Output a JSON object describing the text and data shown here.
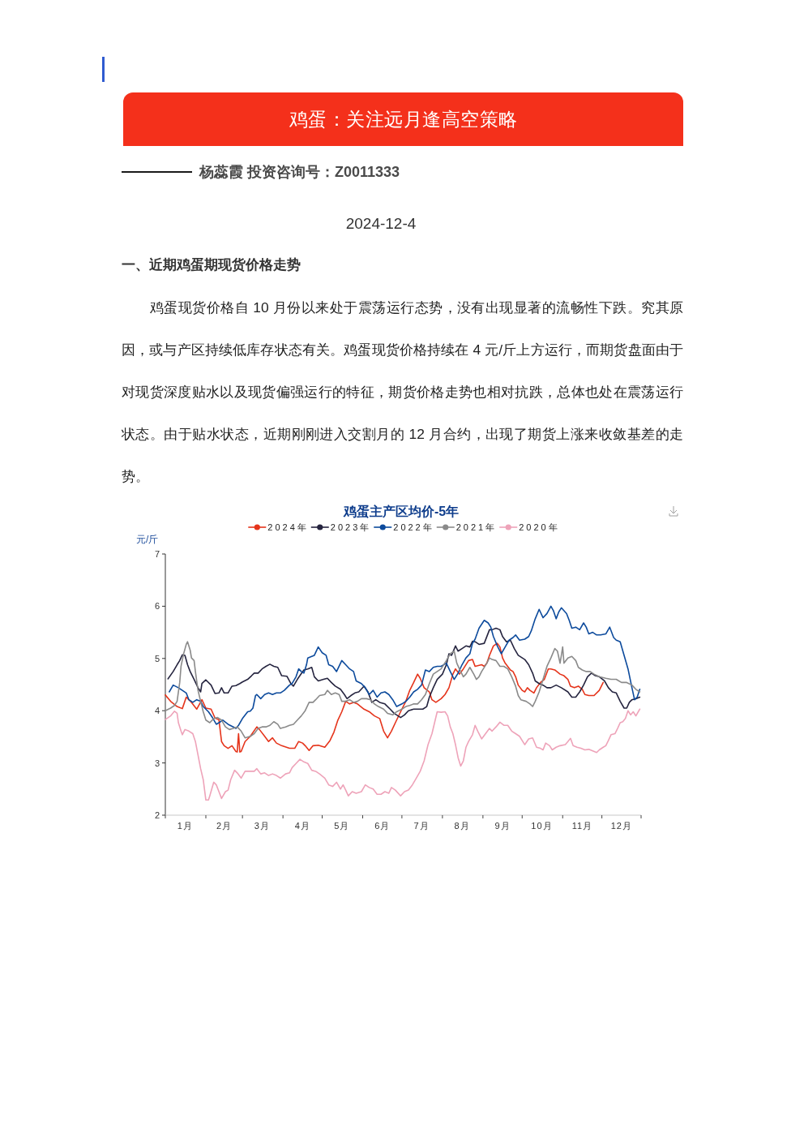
{
  "chart_data": {
    "type": "line",
    "title": "鸡蛋主产区均价-5年",
    "ylabel": "元/斤",
    "annotations": [
      "鸡蛋：关注远月逢高空策略",
      "杨蕊霞 投资咨询号：Z0011333",
      "2024-12-4",
      "一、近期鸡蛋期现货价格走势",
      "鸡蛋现货价格自 10 月份以来处于震荡运行态势，没有出现显著的流畅性下跌。究其原因，或与产区持续低库存状态有关。鸡蛋现货价格持续在 4 元/斤上方运行，而期货盘面由于对现货深度贴水以及现货偏强运行的特征，期货价格走势也相对抗跌，总体也处在震荡运行状态。由于贴水状态，近期刚刚进入交割月的 12 月合约，出现了期货上涨来收敛基差的走势。"
    ],
    "legend": "top",
    "xlim": [
      "--01-01",
      "--12-31"
    ],
    "xticks": [
      {
        "value": "--01-01",
        "label": null
      },
      {
        "value": "--01-16",
        "label": "1月"
      },
      {
        "value": "--02-01",
        "label": null
      },
      {
        "value": "--02-15",
        "label": "2月"
      },
      {
        "value": "--03-01",
        "label": null
      },
      {
        "value": "--03-16",
        "label": "3月"
      },
      {
        "value": "--04-01",
        "label": null
      },
      {
        "value": "--04-16",
        "label": "4月"
      },
      {
        "value": "--05-01",
        "label": null
      },
      {
        "value": "--05-16",
        "label": "5月"
      },
      {
        "value": "--06-01",
        "label": null
      },
      {
        "value": "--06-16",
        "label": "6月"
      },
      {
        "value": "--07-01",
        "label": null
      },
      {
        "value": "--07-16",
        "label": "7月"
      },
      {
        "value": "--08-01",
        "label": null
      },
      {
        "value": "--08-16",
        "label": "8月"
      },
      {
        "value": "--09-01",
        "label": null
      },
      {
        "value": "--09-16",
        "label": "9月"
      },
      {
        "value": "--10-01",
        "label": null
      },
      {
        "value": "--10-16",
        "label": "10月"
      },
      {
        "value": "--11-01",
        "label": null
      },
      {
        "value": "--11-16",
        "label": "11月"
      },
      {
        "value": "--12-01",
        "label": null
      },
      {
        "value": "--12-16",
        "label": "12月"
      },
      {
        "value": "--12-31",
        "label": null
      }
    ],
    "ylim": [
      2,
      7
    ],
    "yticks": [
      2,
      3,
      4,
      5,
      6,
      7
    ],
    "series": [
      {
        "name": "2024年",
        "color": "#e5341b",
        "x": [
          "--01-01",
          "--01-05",
          "--01-10",
          "--01-14",
          "--01-17",
          "--01-21",
          "--01-25",
          "--01-29",
          "--02-01",
          "--02-05",
          "--02-08",
          "--02-11",
          "--02-13",
          "--02-15",
          "--02-18",
          "--02-21",
          "--02-24",
          "--02-25",
          "--02-26",
          "--02-27",
          "--02-28",
          "--03-03",
          "--03-07",
          "--03-12",
          "--03-14",
          "--03-18",
          "--03-21",
          "--03-24",
          "--03-27",
          "--03-31",
          "--04-06",
          "--04-10",
          "--04-13",
          "--04-16",
          "--04-18",
          "--04-21",
          "--04-24",
          "--04-28",
          "--05-03",
          "--05-07",
          "--05-10",
          "--05-13",
          "--05-16",
          "--05-19",
          "--05-22",
          "--05-25",
          "--05-28",
          "--06-02",
          "--06-06",
          "--06-10",
          "--06-14",
          "--06-17",
          "--06-20",
          "--06-23",
          "--06-26",
          "--06-30",
          "--07-04",
          "--07-07",
          "--07-10",
          "--07-13",
          "--07-15",
          "--07-18",
          "--07-22",
          "--07-24",
          "--07-27",
          "--07-31",
          "--08-03",
          "--08-06",
          "--08-09",
          "--08-11",
          "--08-14",
          "--08-17",
          "--08-21",
          "--08-24",
          "--08-26",
          "--08-31",
          "--09-02",
          "--09-04",
          "--09-06",
          "--09-09",
          "--09-12",
          "--09-14",
          "--09-16",
          "--09-18",
          "--09-22",
          "--09-24",
          "--09-26",
          "--09-28",
          "--10-01",
          "--10-03",
          "--10-05",
          "--10-07",
          "--10-10",
          "--10-12",
          "--10-15",
          "--10-18",
          "--10-21",
          "--10-23",
          "--10-26",
          "--10-30",
          "--11-02",
          "--11-05",
          "--11-07",
          "--11-10",
          "--11-13",
          "--11-16",
          "--11-18",
          "--11-21",
          "--11-25",
          "--11-29",
          "--12-02"
        ],
        "values": [
          4.3,
          4.18,
          4.08,
          4.04,
          4.26,
          4.16,
          4.03,
          4.21,
          4.05,
          4.03,
          3.86,
          3.83,
          3.41,
          3.33,
          3.28,
          3.33,
          3.22,
          3.21,
          3.56,
          3.21,
          3.22,
          3.41,
          3.51,
          3.69,
          3.64,
          3.51,
          3.41,
          3.48,
          3.38,
          3.33,
          3.28,
          3.28,
          3.41,
          3.38,
          3.33,
          3.24,
          3.33,
          3.34,
          3.3,
          3.43,
          3.59,
          3.82,
          3.98,
          4.18,
          4.13,
          4.16,
          4.13,
          4.03,
          3.98,
          3.9,
          3.85,
          3.61,
          3.48,
          3.61,
          3.77,
          3.98,
          4.18,
          4.39,
          4.54,
          4.7,
          4.62,
          4.44,
          4.36,
          4.21,
          4.16,
          4.23,
          4.31,
          4.44,
          4.7,
          4.8,
          4.7,
          4.8,
          4.96,
          4.98,
          4.85,
          4.88,
          4.85,
          4.91,
          5.06,
          5.24,
          5.29,
          5.22,
          5.01,
          4.91,
          4.78,
          4.75,
          4.65,
          4.49,
          4.39,
          4.36,
          4.44,
          4.39,
          4.34,
          4.44,
          4.54,
          4.6,
          4.8,
          4.8,
          4.78,
          4.7,
          4.67,
          4.6,
          4.47,
          4.44,
          4.47,
          4.41,
          4.31,
          4.29,
          4.29,
          4.39,
          4.54
        ]
      },
      {
        "name": "2023年",
        "color": "#25243f",
        "x": [
          "--01-03",
          "--01-07",
          "--01-10",
          "--01-12",
          "--01-14",
          "--01-16",
          "--01-18",
          "--01-20",
          "--01-23",
          "--01-26",
          "--01-28",
          "--01-29",
          "--02-01",
          "--02-05",
          "--02-08",
          "--02-11",
          "--02-13",
          "--02-15",
          "--02-18",
          "--02-21",
          "--02-24",
          "--02-27",
          "--03-01",
          "--03-05",
          "--03-08",
          "--03-10",
          "--03-13",
          "--03-16",
          "--03-19",
          "--03-22",
          "--03-25",
          "--03-28",
          "--03-31",
          "--04-04",
          "--04-07",
          "--04-09",
          "--04-12",
          "--04-15",
          "--04-17",
          "--04-20",
          "--04-23",
          "--04-25",
          "--04-28",
          "--05-02",
          "--05-05",
          "--05-08",
          "--05-11",
          "--05-15",
          "--05-18",
          "--05-20",
          "--05-23",
          "--05-26",
          "--05-29",
          "--06-02",
          "--06-05",
          "--06-08",
          "--06-11",
          "--06-14",
          "--06-18",
          "--06-22",
          "--06-25",
          "--06-30",
          "--07-03",
          "--07-06",
          "--07-10",
          "--07-14",
          "--07-17",
          "--07-20",
          "--07-22",
          "--07-25",
          "--07-28",
          "--08-01",
          "--08-04",
          "--08-06",
          "--08-08",
          "--08-11",
          "--08-13",
          "--08-16",
          "--08-19",
          "--08-22",
          "--08-24",
          "--08-26",
          "--08-29",
          "--09-02",
          "--09-06",
          "--09-08",
          "--09-11",
          "--09-14",
          "--09-16",
          "--09-19",
          "--09-22",
          "--09-25",
          "--09-28",
          "--10-03",
          "--10-06",
          "--10-09",
          "--10-11",
          "--10-14",
          "--10-17",
          "--10-20",
          "--10-23",
          "--10-27",
          "--10-31",
          "--11-05",
          "--11-08",
          "--11-11",
          "--11-14",
          "--11-17",
          "--11-20",
          "--11-23",
          "--11-26",
          "--11-29",
          "--12-03",
          "--12-06",
          "--12-09",
          "--12-12",
          "--12-15",
          "--12-18",
          "--12-20",
          "--12-22",
          "--12-24",
          "--12-27",
          "--12-30"
        ],
        "values": [
          4.61,
          4.75,
          4.88,
          4.96,
          5.07,
          5.06,
          4.88,
          4.75,
          4.6,
          4.44,
          4.36,
          4.52,
          4.59,
          4.49,
          4.33,
          4.34,
          4.44,
          4.34,
          4.34,
          4.47,
          4.48,
          4.52,
          4.55,
          4.6,
          4.67,
          4.72,
          4.72,
          4.8,
          4.85,
          4.89,
          4.85,
          4.83,
          4.67,
          4.66,
          4.52,
          4.47,
          4.6,
          4.71,
          4.78,
          4.8,
          4.83,
          4.65,
          4.57,
          4.6,
          4.62,
          4.54,
          4.47,
          4.41,
          4.31,
          4.23,
          4.29,
          4.34,
          4.36,
          4.47,
          4.36,
          4.16,
          4.21,
          4.16,
          4.13,
          4.03,
          3.95,
          3.87,
          3.92,
          4.0,
          4.03,
          4.03,
          4.03,
          4.08,
          4.26,
          4.44,
          4.6,
          4.7,
          4.88,
          5.09,
          5.06,
          5.24,
          5.14,
          5.19,
          5.24,
          5.22,
          5.33,
          5.32,
          5.27,
          5.29,
          5.55,
          5.55,
          5.58,
          5.55,
          5.42,
          5.32,
          5.35,
          5.19,
          5.06,
          4.98,
          4.88,
          4.72,
          4.57,
          4.52,
          4.49,
          4.44,
          4.44,
          4.49,
          4.44,
          4.36,
          4.26,
          4.26,
          4.36,
          4.49,
          4.65,
          4.72,
          4.67,
          4.65,
          4.57,
          4.44,
          4.36,
          4.34,
          4.18,
          4.05,
          4.05,
          4.16,
          4.21,
          4.23,
          4.26
        ]
      },
      {
        "name": "2022年",
        "color": "#0c4a9c",
        "x": [
          "--01-04",
          "--01-07",
          "--01-11",
          "--01-14",
          "--01-17",
          "--01-19",
          "--01-22",
          "--01-25",
          "--01-28",
          "--01-30",
          "--02-03",
          "--02-06",
          "--02-09",
          "--02-11",
          "--02-14",
          "--02-18",
          "--02-22",
          "--02-24",
          "--02-26",
          "--03-01",
          "--03-05",
          "--03-07",
          "--03-09",
          "--03-11",
          "--03-12",
          "--03-15",
          "--03-18",
          "--03-21",
          "--03-24",
          "--03-27",
          "--03-30",
          "--04-02",
          "--04-06",
          "--04-08",
          "--04-11",
          "--04-13",
          "--04-15",
          "--04-17",
          "--04-19",
          "--04-20",
          "--04-23",
          "--04-25",
          "--04-28",
          "--05-01",
          "--05-04",
          "--05-06",
          "--05-09",
          "--05-12",
          "--05-16",
          "--05-19",
          "--05-22",
          "--05-25",
          "--05-27",
          "--05-31",
          "--06-03",
          "--06-06",
          "--06-09",
          "--06-12",
          "--06-15",
          "--06-18",
          "--06-21",
          "--06-24",
          "--06-27",
          "--07-01",
          "--07-04",
          "--07-07",
          "--07-10",
          "--07-13",
          "--07-16",
          "--07-19",
          "--07-22",
          "--07-25",
          "--07-28",
          "--07-31",
          "--08-04",
          "--08-07",
          "--08-10",
          "--08-13",
          "--08-16",
          "--08-19",
          "--08-22",
          "--08-24",
          "--08-26",
          "--08-29",
          "--09-02",
          "--09-05",
          "--09-07",
          "--09-09",
          "--09-12",
          "--09-15",
          "--09-18",
          "--09-21",
          "--09-24",
          "--09-26",
          "--09-29",
          "--10-03",
          "--10-06",
          "--10-08",
          "--10-11",
          "--10-14",
          "--10-17",
          "--10-20",
          "--10-23",
          "--10-25",
          "--10-27",
          "--10-29",
          "--10-31",
          "--11-04",
          "--11-06",
          "--11-08",
          "--11-11",
          "--11-14",
          "--11-17",
          "--11-19",
          "--11-21",
          "--11-24",
          "--11-27",
          "--11-30",
          "--12-04",
          "--12-07",
          "--12-10",
          "--12-12",
          "--12-15",
          "--12-18",
          "--12-21",
          "--12-24",
          "--12-26",
          "--12-28",
          "--12-30"
        ],
        "values": [
          4.36,
          4.49,
          4.44,
          4.39,
          4.34,
          4.21,
          4.16,
          4.21,
          4.18,
          4.08,
          3.98,
          3.87,
          3.74,
          3.77,
          3.82,
          3.74,
          3.69,
          3.66,
          3.72,
          3.85,
          3.98,
          3.99,
          4.05,
          4.29,
          4.31,
          4.23,
          4.31,
          4.34,
          4.31,
          4.34,
          4.34,
          4.39,
          4.49,
          4.52,
          4.65,
          4.8,
          4.75,
          4.72,
          4.88,
          5.01,
          5.04,
          5.06,
          5.22,
          5.11,
          5.06,
          4.88,
          4.85,
          4.75,
          4.96,
          4.88,
          4.8,
          4.75,
          4.57,
          4.52,
          4.44,
          4.31,
          4.39,
          4.26,
          4.34,
          4.36,
          4.31,
          4.21,
          4.08,
          4.13,
          4.18,
          4.26,
          4.36,
          4.41,
          4.49,
          4.78,
          4.75,
          4.83,
          4.85,
          4.85,
          4.91,
          4.75,
          4.6,
          4.72,
          4.88,
          5.01,
          5.09,
          5.29,
          5.37,
          5.58,
          5.73,
          5.68,
          5.6,
          5.42,
          5.24,
          5.09,
          5.22,
          5.35,
          5.4,
          5.45,
          5.35,
          5.37,
          5.42,
          5.53,
          5.76,
          5.94,
          5.78,
          5.86,
          6.0,
          5.91,
          5.76,
          5.89,
          5.97,
          5.86,
          5.73,
          5.58,
          5.6,
          5.55,
          5.68,
          5.6,
          5.47,
          5.5,
          5.45,
          5.45,
          5.47,
          5.6,
          5.4,
          5.35,
          5.32,
          5.06,
          4.8,
          4.44,
          4.21,
          4.26,
          4.41
        ]
      },
      {
        "name": "2021年",
        "color": "#8a8a8a",
        "x": [
          "--01-01",
          "--01-05",
          "--01-08",
          "--01-10",
          "--01-12",
          "--01-13",
          "--01-15",
          "--01-17",
          "--01-18",
          "--01-20",
          "--01-21",
          "--01-23",
          "--01-24",
          "--01-26",
          "--01-28",
          "--01-30",
          "--02-01",
          "--02-04",
          "--02-07",
          "--02-10",
          "--02-13",
          "--02-16",
          "--02-19",
          "--02-22",
          "--02-25",
          "--02-28",
          "--03-03",
          "--03-07",
          "--03-10",
          "--03-13",
          "--03-16",
          "--03-19",
          "--03-22",
          "--03-25",
          "--03-28",
          "--03-30",
          "--04-03",
          "--04-06",
          "--04-09",
          "--04-12",
          "--04-15",
          "--04-18",
          "--04-21",
          "--04-24",
          "--04-26",
          "--04-29",
          "--05-03",
          "--05-05",
          "--05-08",
          "--05-11",
          "--05-14",
          "--05-16",
          "--05-19",
          "--05-22",
          "--05-25",
          "--05-28",
          "--05-31",
          "--06-04",
          "--06-07",
          "--06-10",
          "--06-13",
          "--06-17",
          "--06-20",
          "--06-24",
          "--06-27",
          "--07-01",
          "--07-04",
          "--07-07",
          "--07-10",
          "--07-13",
          "--07-16",
          "--07-19",
          "--07-22",
          "--07-25",
          "--07-28",
          "--07-31",
          "--08-04",
          "--08-07",
          "--08-10",
          "--08-12",
          "--08-14",
          "--08-17",
          "--08-19",
          "--08-22",
          "--08-25",
          "--08-27",
          "--08-29",
          "--08-31",
          "--09-04",
          "--09-06",
          "--09-08",
          "--09-11",
          "--09-14",
          "--09-17",
          "--09-20",
          "--09-23",
          "--09-26",
          "--09-28",
          "--09-30",
          "--10-04",
          "--10-07",
          "--10-09",
          "--10-11",
          "--10-14",
          "--10-17",
          "--10-20",
          "--10-23",
          "--10-26",
          "--10-28",
          "--10-30",
          "--10-31",
          "--11-01",
          "--11-02",
          "--11-05",
          "--11-08",
          "--11-11",
          "--11-13",
          "--11-16",
          "--11-19",
          "--11-22",
          "--11-25",
          "--11-29",
          "--12-04",
          "--12-08",
          "--12-12",
          "--12-16",
          "--12-20",
          "--12-24",
          "--12-27",
          "--12-30"
        ],
        "values": [
          4.0,
          4.05,
          4.1,
          4.18,
          4.54,
          4.85,
          5.09,
          5.27,
          5.32,
          5.16,
          5.01,
          4.96,
          4.75,
          4.39,
          4.18,
          3.98,
          3.82,
          3.77,
          3.85,
          3.87,
          3.82,
          3.69,
          3.64,
          3.66,
          3.69,
          3.61,
          3.48,
          3.51,
          3.56,
          3.66,
          3.69,
          3.69,
          3.72,
          3.79,
          3.74,
          3.66,
          3.69,
          3.72,
          3.74,
          3.82,
          3.9,
          4.0,
          4.16,
          4.16,
          4.21,
          4.29,
          4.31,
          4.39,
          4.31,
          4.34,
          4.31,
          4.18,
          4.18,
          4.21,
          4.16,
          4.18,
          4.23,
          4.23,
          4.21,
          4.13,
          4.08,
          4.03,
          3.95,
          3.92,
          3.98,
          4.03,
          4.08,
          4.1,
          4.13,
          4.13,
          4.21,
          4.31,
          4.52,
          4.7,
          4.75,
          4.8,
          4.96,
          5.09,
          5.14,
          4.91,
          4.8,
          4.65,
          4.7,
          4.83,
          4.7,
          4.6,
          4.65,
          4.75,
          4.91,
          5.01,
          4.98,
          4.96,
          4.85,
          4.85,
          4.8,
          4.65,
          4.47,
          4.29,
          4.21,
          4.18,
          4.13,
          4.08,
          4.18,
          4.36,
          4.6,
          4.85,
          5.01,
          5.19,
          5.14,
          4.91,
          5.06,
          5.22,
          4.91,
          5.01,
          5.04,
          4.96,
          4.83,
          4.78,
          4.75,
          4.75,
          4.7,
          4.65,
          4.62,
          4.6,
          4.6,
          4.54,
          4.54,
          4.49,
          4.41,
          4.36
        ]
      },
      {
        "name": "2020年",
        "color": "#eea3b9",
        "x": [
          "--01-01",
          "--01-05",
          "--01-08",
          "--01-10",
          "--01-11",
          "--01-13",
          "--01-14",
          "--01-16",
          "--01-19",
          "--01-22",
          "--01-24",
          "--01-26",
          "--01-28",
          "--01-30",
          "--02-01",
          "--02-03",
          "--02-04",
          "--02-07",
          "--02-09",
          "--02-11",
          "--02-13",
          "--02-16",
          "--02-18",
          "--02-20",
          "--02-23",
          "--02-25",
          "--02-28",
          "--03-03",
          "--03-07",
          "--03-10",
          "--03-12",
          "--03-15",
          "--03-18",
          "--03-21",
          "--03-24",
          "--03-27",
          "--03-30",
          "--04-03",
          "--04-06",
          "--04-08",
          "--04-11",
          "--04-14",
          "--04-17",
          "--04-20",
          "--04-23",
          "--04-26",
          "--04-29",
          "--05-03",
          "--05-06",
          "--05-09",
          "--05-12",
          "--05-15",
          "--05-17",
          "--05-19",
          "--05-21",
          "--05-24",
          "--05-27",
          "--05-31",
          "--06-03",
          "--06-06",
          "--06-09",
          "--06-12",
          "--06-15",
          "--06-18",
          "--06-21",
          "--06-23",
          "--06-26",
          "--06-30",
          "--07-03",
          "--07-06",
          "--07-09",
          "--07-12",
          "--07-15",
          "--07-18",
          "--07-21",
          "--07-24",
          "--07-26",
          "--07-28",
          "--07-31",
          "--08-03",
          "--08-05",
          "--08-07",
          "--08-09",
          "--08-11",
          "--08-13",
          "--08-15",
          "--08-17",
          "--08-19",
          "--08-21",
          "--08-24",
          "--08-26",
          "--08-28",
          "--08-31",
          "--09-03",
          "--09-06",
          "--09-08",
          "--09-11",
          "--09-14",
          "--09-17",
          "--09-20",
          "--09-23",
          "--09-26",
          "--09-29",
          "--10-03",
          "--10-06",
          "--10-09",
          "--10-12",
          "--10-15",
          "--10-17",
          "--10-19",
          "--10-22",
          "--10-24",
          "--10-27",
          "--10-30",
          "--11-03",
          "--11-05",
          "--11-07",
          "--11-09",
          "--11-12",
          "--11-15",
          "--11-18",
          "--11-21",
          "--11-24",
          "--11-27",
          "--11-29",
          "--12-02",
          "--12-04",
          "--12-06",
          "--12-08",
          "--12-11",
          "--12-13",
          "--12-15",
          "--12-17",
          "--12-19",
          "--12-21",
          "--12-23",
          "--12-25",
          "--12-27",
          "--12-30"
        ],
        "values": [
          3.83,
          3.9,
          3.99,
          3.95,
          3.77,
          3.61,
          3.54,
          3.64,
          3.61,
          3.56,
          3.41,
          3.15,
          2.89,
          2.68,
          2.29,
          2.29,
          2.37,
          2.63,
          2.58,
          2.45,
          2.32,
          2.45,
          2.48,
          2.68,
          2.86,
          2.81,
          2.71,
          2.84,
          2.84,
          2.84,
          2.89,
          2.79,
          2.81,
          2.76,
          2.79,
          2.76,
          2.71,
          2.79,
          2.81,
          2.91,
          2.99,
          3.07,
          3.02,
          2.99,
          2.86,
          2.84,
          2.79,
          2.71,
          2.58,
          2.55,
          2.63,
          2.5,
          2.58,
          2.48,
          2.37,
          2.45,
          2.42,
          2.45,
          2.58,
          2.53,
          2.5,
          2.4,
          2.4,
          2.45,
          2.42,
          2.53,
          2.48,
          2.37,
          2.45,
          2.48,
          2.58,
          2.71,
          2.84,
          3.04,
          3.35,
          3.56,
          3.77,
          3.98,
          3.97,
          3.98,
          3.9,
          3.69,
          3.56,
          3.35,
          3.1,
          2.94,
          3.04,
          3.3,
          3.41,
          3.54,
          3.72,
          3.61,
          3.46,
          3.56,
          3.66,
          3.61,
          3.69,
          3.78,
          3.72,
          3.72,
          3.61,
          3.56,
          3.51,
          3.35,
          3.46,
          3.48,
          3.3,
          3.28,
          3.25,
          3.38,
          3.33,
          3.25,
          3.3,
          3.33,
          3.35,
          3.41,
          3.47,
          3.33,
          3.3,
          3.28,
          3.25,
          3.26,
          3.23,
          3.2,
          3.25,
          3.3,
          3.33,
          3.43,
          3.54,
          3.56,
          3.66,
          3.77,
          3.79,
          3.85,
          4.0,
          3.92,
          3.98,
          3.9,
          4.03
        ]
      }
    ]
  }
}
